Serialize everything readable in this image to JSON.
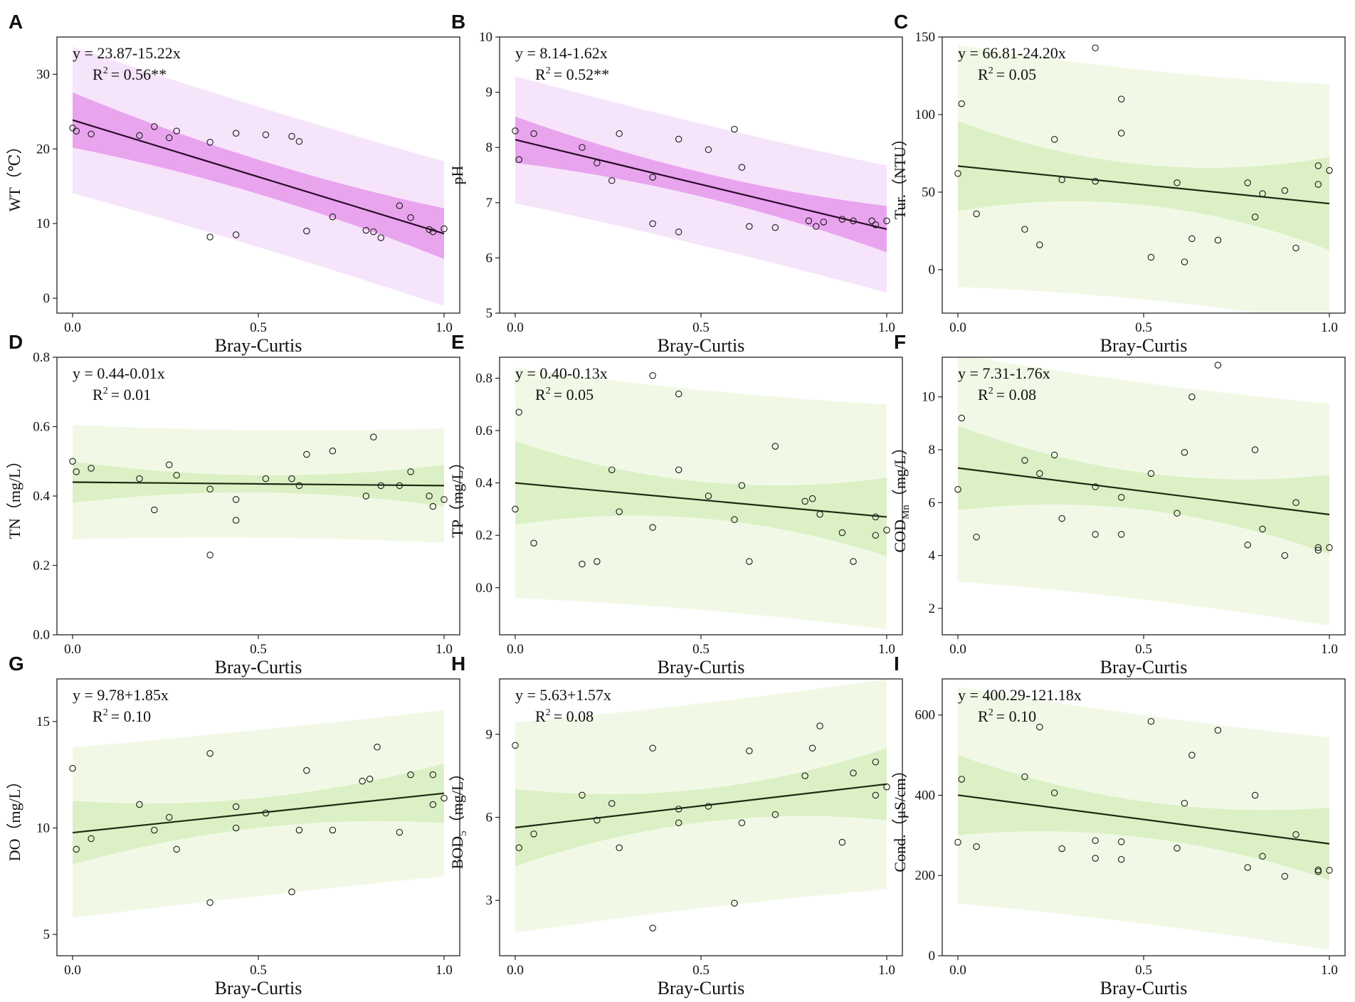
{
  "chart_data": [
    {
      "panel": "A",
      "type": "scatter",
      "ylabel": "WT（℃）",
      "xlabel": "Bray-Curtis",
      "theme": "purple",
      "intercept": 23.87,
      "slope": -15.22,
      "equation": "y = 23.87-15.22x",
      "r2_label": "R",
      "r2_value": "= 0.56**",
      "xlim": [
        0,
        1
      ],
      "ylim": [
        -2,
        35
      ],
      "xticks": [
        0.0,
        0.5,
        1.0
      ],
      "xtick_labels": [
        "0.0",
        "0.5",
        "1.0"
      ],
      "yticks": [
        0,
        10,
        20,
        30
      ],
      "ytick_labels": [
        "0",
        "10",
        "20",
        "30"
      ],
      "ci_half": [
        3.7,
        2.3,
        3.4
      ],
      "pi_half": [
        9.8,
        9.4,
        9.7
      ],
      "points": [
        [
          0.0,
          22.8
        ],
        [
          0.01,
          22.4
        ],
        [
          0.05,
          22.0
        ],
        [
          0.18,
          21.8
        ],
        [
          0.22,
          23.0
        ],
        [
          0.26,
          21.5
        ],
        [
          0.28,
          22.4
        ],
        [
          0.37,
          20.9
        ],
        [
          0.37,
          8.2
        ],
        [
          0.44,
          22.1
        ],
        [
          0.44,
          8.5
        ],
        [
          0.52,
          21.9
        ],
        [
          0.59,
          21.7
        ],
        [
          0.61,
          21.0
        ],
        [
          0.63,
          9.0
        ],
        [
          0.7,
          10.9
        ],
        [
          0.79,
          9.1
        ],
        [
          0.81,
          8.9
        ],
        [
          0.83,
          8.1
        ],
        [
          0.88,
          12.4
        ],
        [
          0.91,
          10.8
        ],
        [
          0.96,
          9.2
        ],
        [
          0.97,
          8.9
        ],
        [
          1.0,
          9.3
        ]
      ]
    },
    {
      "panel": "B",
      "type": "scatter",
      "ylabel": "pH",
      "xlabel": "Bray-Curtis",
      "theme": "purple",
      "intercept": 8.14,
      "slope": -1.62,
      "equation": "y = 8.14-1.62x",
      "r2_label": "R",
      "r2_value": "= 0.52**",
      "xlim": [
        0,
        1
      ],
      "ylim": [
        5,
        10
      ],
      "xticks": [
        0.0,
        0.5,
        1.0
      ],
      "xtick_labels": [
        "0.0",
        "0.5",
        "1.0"
      ],
      "yticks": [
        5,
        6,
        7,
        8,
        9,
        10
      ],
      "ytick_labels": [
        "5",
        "6",
        "7",
        "8",
        "9",
        "10"
      ],
      "ci_half": [
        0.42,
        0.22,
        0.42
      ],
      "pi_half": [
        1.15,
        1.1,
        1.15
      ],
      "points": [
        [
          0.0,
          8.3
        ],
        [
          0.01,
          7.78
        ],
        [
          0.05,
          8.25
        ],
        [
          0.18,
          8.0
        ],
        [
          0.22,
          7.72
        ],
        [
          0.26,
          7.4
        ],
        [
          0.28,
          8.25
        ],
        [
          0.37,
          7.46
        ],
        [
          0.37,
          6.62
        ],
        [
          0.44,
          8.15
        ],
        [
          0.44,
          6.47
        ],
        [
          0.52,
          7.96
        ],
        [
          0.59,
          8.33
        ],
        [
          0.61,
          7.64
        ],
        [
          0.63,
          6.57
        ],
        [
          0.7,
          6.55
        ],
        [
          0.79,
          6.67
        ],
        [
          0.81,
          6.57
        ],
        [
          0.83,
          6.65
        ],
        [
          0.88,
          6.7
        ],
        [
          0.91,
          6.67
        ],
        [
          0.96,
          6.67
        ],
        [
          0.97,
          6.6
        ],
        [
          1.0,
          6.67
        ]
      ]
    },
    {
      "panel": "C",
      "type": "scatter",
      "ylabel": "Tur.（NTU）",
      "xlabel": "Bray-Curtis",
      "theme": "green",
      "intercept": 66.81,
      "slope": -24.2,
      "equation": "y = 66.81-24.20x",
      "r2_label": "R",
      "r2_value": "= 0.05",
      "xlim": [
        0,
        1
      ],
      "ylim": [
        -28,
        150
      ],
      "xticks": [
        0.0,
        0.5,
        1.0
      ],
      "xtick_labels": [
        "0.0",
        "0.5",
        "1.0"
      ],
      "yticks": [
        0,
        50,
        100,
        150
      ],
      "ytick_labels": [
        "0",
        "50",
        "100",
        "150"
      ],
      "ci_half": [
        29,
        13,
        30
      ],
      "pi_half": [
        78,
        74,
        77
      ],
      "points": [
        [
          0.0,
          62
        ],
        [
          0.01,
          107
        ],
        [
          0.05,
          36
        ],
        [
          0.18,
          26
        ],
        [
          0.22,
          16
        ],
        [
          0.26,
          84
        ],
        [
          0.28,
          58
        ],
        [
          0.37,
          143
        ],
        [
          0.37,
          57
        ],
        [
          0.44,
          110
        ],
        [
          0.44,
          88
        ],
        [
          0.52,
          8
        ],
        [
          0.59,
          56
        ],
        [
          0.61,
          5
        ],
        [
          0.63,
          20
        ],
        [
          0.7,
          19
        ],
        [
          0.78,
          56
        ],
        [
          0.8,
          34
        ],
        [
          0.82,
          49
        ],
        [
          0.88,
          51
        ],
        [
          0.91,
          14
        ],
        [
          0.97,
          55
        ],
        [
          0.97,
          67
        ],
        [
          1.0,
          64
        ]
      ]
    },
    {
      "panel": "D",
      "type": "scatter",
      "ylabel": "TN（mg/L）",
      "xlabel": "Bray-Curtis",
      "theme": "green",
      "intercept": 0.44,
      "slope": -0.01,
      "equation": "y = 0.44-0.01x",
      "r2_label": "R",
      "r2_value": "= 0.01",
      "xlim": [
        0,
        1
      ],
      "ylim": [
        0,
        0.8
      ],
      "xticks": [
        0.0,
        0.5,
        1.0
      ],
      "xtick_labels": [
        "0.0",
        "0.5",
        "1.0"
      ],
      "yticks": [
        0,
        0.2,
        0.4,
        0.6,
        0.8
      ],
      "ytick_labels": [
        "0.0",
        "0.2",
        "0.4",
        "0.6",
        "0.8"
      ],
      "ci_half": [
        0.06,
        0.025,
        0.06
      ],
      "pi_half": [
        0.165,
        0.155,
        0.165
      ],
      "points": [
        [
          0.0,
          0.5
        ],
        [
          0.01,
          0.47
        ],
        [
          0.05,
          0.48
        ],
        [
          0.18,
          0.45
        ],
        [
          0.22,
          0.36
        ],
        [
          0.26,
          0.49
        ],
        [
          0.28,
          0.46
        ],
        [
          0.37,
          0.42
        ],
        [
          0.37,
          0.23
        ],
        [
          0.44,
          0.39
        ],
        [
          0.44,
          0.33
        ],
        [
          0.52,
          0.45
        ],
        [
          0.59,
          0.45
        ],
        [
          0.61,
          0.43
        ],
        [
          0.63,
          0.52
        ],
        [
          0.7,
          0.53
        ],
        [
          0.79,
          0.4
        ],
        [
          0.81,
          0.57
        ],
        [
          0.83,
          0.43
        ],
        [
          0.88,
          0.43
        ],
        [
          0.91,
          0.47
        ],
        [
          0.96,
          0.4
        ],
        [
          0.97,
          0.37
        ],
        [
          1.0,
          0.39
        ]
      ]
    },
    {
      "panel": "E",
      "type": "scatter",
      "ylabel": "TP（mg/L）",
      "xlabel": "Bray-Curtis",
      "theme": "green",
      "intercept": 0.4,
      "slope": -0.13,
      "equation": "y = 0.40-0.13x",
      "r2_label": "R",
      "r2_value": "= 0.05",
      "xlim": [
        0,
        1
      ],
      "ylim": [
        -0.18,
        0.88
      ],
      "xticks": [
        0.0,
        0.5,
        1.0
      ],
      "xtick_labels": [
        "0.0",
        "0.5",
        "1.0"
      ],
      "yticks": [
        0,
        0.2,
        0.4,
        0.6,
        0.8
      ],
      "ytick_labels": [
        "0.0",
        "0.2",
        "0.4",
        "0.6",
        "0.8"
      ],
      "ci_half": [
        0.16,
        0.07,
        0.15
      ],
      "pi_half": [
        0.44,
        0.42,
        0.43
      ],
      "points": [
        [
          0.0,
          0.3
        ],
        [
          0.01,
          0.67
        ],
        [
          0.05,
          0.17
        ],
        [
          0.18,
          0.09
        ],
        [
          0.22,
          0.1
        ],
        [
          0.26,
          0.45
        ],
        [
          0.28,
          0.29
        ],
        [
          0.37,
          0.81
        ],
        [
          0.37,
          0.23
        ],
        [
          0.44,
          0.74
        ],
        [
          0.44,
          0.45
        ],
        [
          0.52,
          0.35
        ],
        [
          0.59,
          0.26
        ],
        [
          0.61,
          0.39
        ],
        [
          0.63,
          0.1
        ],
        [
          0.7,
          0.54
        ],
        [
          0.78,
          0.33
        ],
        [
          0.8,
          0.34
        ],
        [
          0.82,
          0.28
        ],
        [
          0.88,
          0.21
        ],
        [
          0.91,
          0.1
        ],
        [
          0.97,
          0.27
        ],
        [
          0.97,
          0.2
        ],
        [
          1.0,
          0.22
        ]
      ]
    },
    {
      "panel": "F",
      "type": "scatter",
      "ylabel": "COD",
      "ylabel_sub": "Mn",
      "ylabel_tail": "（mg/L）",
      "xlabel": "Bray-Curtis",
      "theme": "green",
      "intercept": 7.31,
      "slope": -1.76,
      "equation": "y = 7.31-1.76x",
      "r2_label": "R",
      "r2_value": "= 0.08",
      "xlim": [
        0,
        1
      ],
      "ylim": [
        1,
        11.5
      ],
      "xticks": [
        0.0,
        0.5,
        1.0
      ],
      "xtick_labels": [
        "0.0",
        "0.5",
        "1.0"
      ],
      "yticks": [
        2,
        4,
        6,
        8,
        10
      ],
      "ytick_labels": [
        "2",
        "4",
        "6",
        "8",
        "10"
      ],
      "ci_half": [
        1.6,
        0.7,
        1.5
      ],
      "pi_half": [
        4.3,
        4.1,
        4.2
      ],
      "points": [
        [
          0.0,
          6.5
        ],
        [
          0.01,
          9.2
        ],
        [
          0.05,
          4.7
        ],
        [
          0.18,
          7.6
        ],
        [
          0.22,
          7.1
        ],
        [
          0.26,
          7.8
        ],
        [
          0.28,
          5.4
        ],
        [
          0.37,
          4.8
        ],
        [
          0.37,
          6.6
        ],
        [
          0.44,
          6.2
        ],
        [
          0.44,
          4.8
        ],
        [
          0.52,
          7.1
        ],
        [
          0.59,
          5.6
        ],
        [
          0.61,
          7.9
        ],
        [
          0.63,
          10.0
        ],
        [
          0.7,
          11.2
        ],
        [
          0.78,
          4.4
        ],
        [
          0.8,
          8.0
        ],
        [
          0.82,
          5.0
        ],
        [
          0.88,
          4.0
        ],
        [
          0.91,
          6.0
        ],
        [
          0.97,
          4.2
        ],
        [
          0.97,
          4.3
        ],
        [
          1.0,
          4.3
        ]
      ]
    },
    {
      "panel": "G",
      "type": "scatter",
      "ylabel": "DO（mg/L）",
      "xlabel": "Bray-Curtis",
      "theme": "green",
      "intercept": 9.78,
      "slope": 1.85,
      "equation": "y = 9.78+1.85x",
      "r2_label": "R",
      "r2_value": "= 0.10",
      "xlim": [
        0,
        1
      ],
      "ylim": [
        4,
        17
      ],
      "xticks": [
        0.0,
        0.5,
        1.0
      ],
      "xtick_labels": [
        "0.0",
        "0.5",
        "1.0"
      ],
      "yticks": [
        5,
        10,
        15
      ],
      "ytick_labels": [
        "5",
        "10",
        "15"
      ],
      "ci_half": [
        1.5,
        0.7,
        1.4
      ],
      "pi_half": [
        4.0,
        3.9,
        3.9
      ],
      "points": [
        [
          0.0,
          12.8
        ],
        [
          0.01,
          9.0
        ],
        [
          0.05,
          9.5
        ],
        [
          0.18,
          11.1
        ],
        [
          0.22,
          9.9
        ],
        [
          0.26,
          10.5
        ],
        [
          0.28,
          9.0
        ],
        [
          0.37,
          13.5
        ],
        [
          0.37,
          6.5
        ],
        [
          0.44,
          11.0
        ],
        [
          0.44,
          10.0
        ],
        [
          0.52,
          10.7
        ],
        [
          0.59,
          7.0
        ],
        [
          0.61,
          9.9
        ],
        [
          0.63,
          12.7
        ],
        [
          0.7,
          9.9
        ],
        [
          0.78,
          12.2
        ],
        [
          0.8,
          12.3
        ],
        [
          0.82,
          13.8
        ],
        [
          0.88,
          9.8
        ],
        [
          0.91,
          12.5
        ],
        [
          0.97,
          11.1
        ],
        [
          0.97,
          12.5
        ],
        [
          1.0,
          11.4
        ]
      ]
    },
    {
      "panel": "H",
      "type": "scatter",
      "ylabel": "BOD",
      "ylabel_sub": "5",
      "ylabel_tail": "（mg/L）",
      "xlabel": "Bray-Curtis",
      "theme": "green",
      "intercept": 5.63,
      "slope": 1.57,
      "equation": "y = 5.63+1.57x",
      "r2_label": "R",
      "r2_value": "= 0.08",
      "xlim": [
        0,
        1
      ],
      "ylim": [
        1,
        11
      ],
      "xticks": [
        0.0,
        0.5,
        1.0
      ],
      "xtick_labels": [
        "0.0",
        "0.5",
        "1.0"
      ],
      "yticks": [
        3,
        6,
        9
      ],
      "ytick_labels": [
        "3",
        "6",
        "9"
      ],
      "ci_half": [
        1.4,
        0.6,
        1.3
      ],
      "pi_half": [
        3.8,
        3.7,
        3.8
      ],
      "points": [
        [
          0.0,
          8.6
        ],
        [
          0.01,
          4.9
        ],
        [
          0.05,
          5.4
        ],
        [
          0.18,
          6.8
        ],
        [
          0.22,
          5.9
        ],
        [
          0.26,
          6.5
        ],
        [
          0.28,
          4.9
        ],
        [
          0.37,
          8.5
        ],
        [
          0.37,
          2.0
        ],
        [
          0.44,
          6.3
        ],
        [
          0.44,
          5.8
        ],
        [
          0.52,
          6.4
        ],
        [
          0.59,
          2.9
        ],
        [
          0.61,
          5.8
        ],
        [
          0.63,
          8.4
        ],
        [
          0.7,
          6.1
        ],
        [
          0.78,
          7.5
        ],
        [
          0.8,
          8.5
        ],
        [
          0.82,
          9.3
        ],
        [
          0.88,
          5.1
        ],
        [
          0.91,
          7.6
        ],
        [
          0.97,
          8.0
        ],
        [
          0.97,
          6.8
        ],
        [
          1.0,
          7.1
        ]
      ]
    },
    {
      "panel": "I",
      "type": "scatter",
      "ylabel": "Cond.（μS/cm）",
      "xlabel": "Bray-Curtis",
      "theme": "green",
      "intercept": 400.29,
      "slope": -121.18,
      "equation": "y = 400.29-121.18x",
      "r2_label": "R",
      "r2_value": "= 0.10",
      "xlim": [
        0,
        1
      ],
      "ylim": [
        0,
        690
      ],
      "xticks": [
        0.0,
        0.5,
        1.0
      ],
      "xtick_labels": [
        "0.0",
        "0.5",
        "1.0"
      ],
      "yticks": [
        0,
        200,
        400,
        600
      ],
      "ytick_labels": [
        "0",
        "200",
        "400",
        "600"
      ],
      "ci_half": [
        100,
        45,
        90
      ],
      "pi_half": [
        270,
        260,
        265
      ],
      "points": [
        [
          0.0,
          283
        ],
        [
          0.01,
          440
        ],
        [
          0.05,
          272
        ],
        [
          0.18,
          446
        ],
        [
          0.22,
          570
        ],
        [
          0.26,
          406
        ],
        [
          0.28,
          267
        ],
        [
          0.37,
          287
        ],
        [
          0.37,
          243
        ],
        [
          0.44,
          284
        ],
        [
          0.44,
          240
        ],
        [
          0.52,
          584
        ],
        [
          0.59,
          268
        ],
        [
          0.61,
          380
        ],
        [
          0.63,
          500
        ],
        [
          0.7,
          562
        ],
        [
          0.78,
          220
        ],
        [
          0.8,
          400
        ],
        [
          0.82,
          248
        ],
        [
          0.88,
          198
        ],
        [
          0.91,
          302
        ],
        [
          0.97,
          210
        ],
        [
          0.97,
          214
        ],
        [
          1.0,
          213
        ]
      ]
    }
  ],
  "colors": {
    "purple_pi": "#f6e4fb",
    "purple_ci": "#e9a4ee",
    "green_pi": "#f1f9e6",
    "green_ci": "#dcf0c6",
    "purple_line": "#2a0a2a",
    "green_line": "#1f2b13",
    "point_stroke": "#1a1a1a"
  }
}
